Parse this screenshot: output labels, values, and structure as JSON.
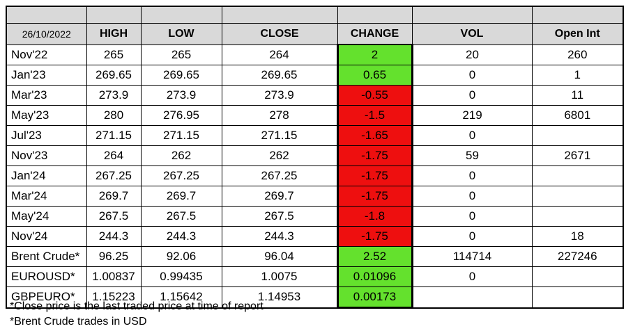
{
  "chart_data": {
    "type": "table",
    "date_label": "26/10/2022",
    "columns": [
      "HIGH",
      "LOW",
      "CLOSE",
      "CHANGE",
      "VOL",
      "Open Int"
    ],
    "rows": [
      {
        "label": "Nov'22",
        "high": "265",
        "low": "265",
        "close": "264",
        "change": "2",
        "change_color": "green",
        "vol": "20",
        "open_int": "260"
      },
      {
        "label": "Jan'23",
        "high": "269.65",
        "low": "269.65",
        "close": "269.65",
        "change": "0.65",
        "change_color": "green",
        "vol": "0",
        "open_int": "1"
      },
      {
        "label": "Mar'23",
        "high": "273.9",
        "low": "273.9",
        "close": "273.9",
        "change": "-0.55",
        "change_color": "red",
        "vol": "0",
        "open_int": "11"
      },
      {
        "label": "May'23",
        "high": "280",
        "low": "276.95",
        "close": "278",
        "change": "-1.5",
        "change_color": "red",
        "vol": "219",
        "open_int": "6801"
      },
      {
        "label": "Jul'23",
        "high": "271.15",
        "low": "271.15",
        "close": "271.15",
        "change": "-1.65",
        "change_color": "red",
        "vol": "0",
        "open_int": ""
      },
      {
        "label": "Nov'23",
        "high": "264",
        "low": "262",
        "close": "262",
        "change": "-1.75",
        "change_color": "red",
        "vol": "59",
        "open_int": "2671"
      },
      {
        "label": "Jan'24",
        "high": "267.25",
        "low": "267.25",
        "close": "267.25",
        "change": "-1.75",
        "change_color": "red",
        "vol": "0",
        "open_int": ""
      },
      {
        "label": "Mar'24",
        "high": "269.7",
        "low": "269.7",
        "close": "269.7",
        "change": "-1.75",
        "change_color": "red",
        "vol": "0",
        "open_int": ""
      },
      {
        "label": "May'24",
        "high": "267.5",
        "low": "267.5",
        "close": "267.5",
        "change": "-1.8",
        "change_color": "red",
        "vol": "0",
        "open_int": ""
      },
      {
        "label": "Nov'24",
        "high": "244.3",
        "low": "244.3",
        "close": "244.3",
        "change": "-1.75",
        "change_color": "red",
        "vol": "0",
        "open_int": "18"
      },
      {
        "label": "Brent Crude*",
        "high": "96.25",
        "low": "92.06",
        "close": "96.04",
        "change": "2.52",
        "change_color": "green",
        "vol": "114714",
        "open_int": "227246"
      },
      {
        "label": "EUROUSD*",
        "high": "1.00837",
        "low": "0.99435",
        "close": "1.0075",
        "change": "0.01096",
        "change_color": "green",
        "vol": "0",
        "open_int": ""
      },
      {
        "label": "GBPEURO*",
        "high": "1.15223",
        "low": "1.15642",
        "close": "1.14953",
        "change": "0.00173",
        "change_color": "green",
        "vol": "",
        "open_int": ""
      }
    ],
    "footnotes": [
      "*Close price is the last traded price at time of report",
      "*Brent Crude trades in USD"
    ]
  },
  "colors": {
    "positive_change_bg": "#64e12d",
    "negative_change_bg": "#ee0f0f",
    "header_bg": "#d9d9d9",
    "grid": "#000000"
  }
}
